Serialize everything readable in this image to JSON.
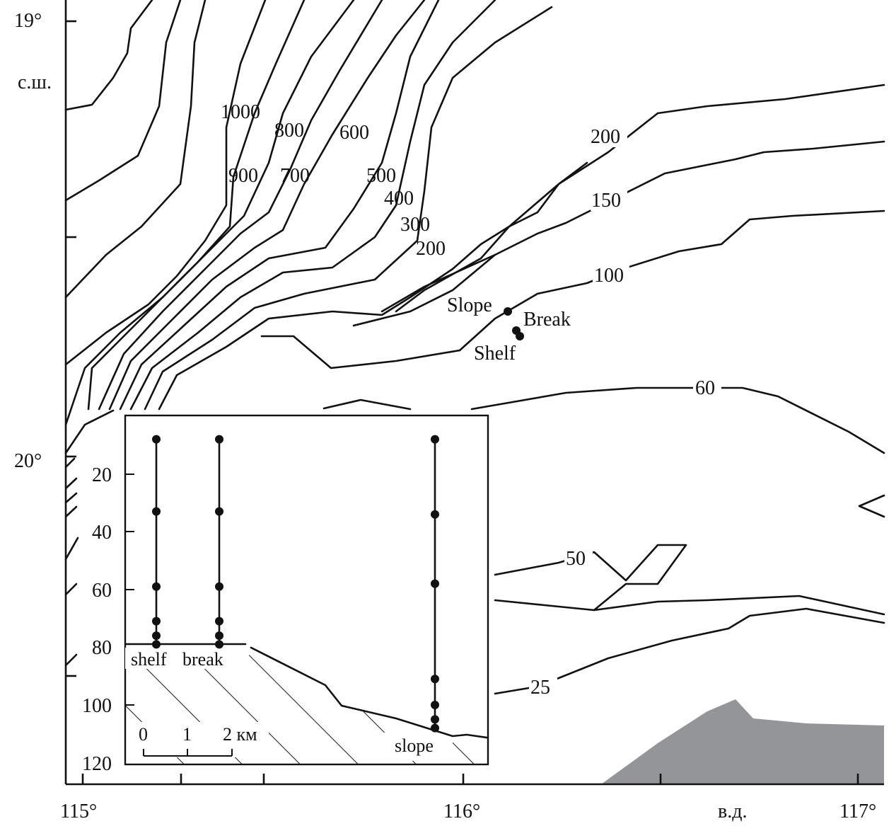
{
  "axes": {
    "lat_labels": [
      "19°",
      "с.ш.",
      "20°"
    ],
    "lon_labels": [
      "115°",
      "116°",
      "в.д.",
      "117°"
    ]
  },
  "contour_labels": [
    "1000",
    "900",
    "800",
    "700",
    "600",
    "500",
    "400",
    "300",
    "200",
    "200",
    "150",
    "100",
    "60",
    "50",
    "25"
  ],
  "stations": [
    "Slope",
    "Break",
    "Shelf"
  ],
  "colors": {
    "land": "#939598",
    "lines": "#111111"
  },
  "inset": {
    "depth_ticks": [
      "20",
      "40",
      "60",
      "80",
      "100",
      "120"
    ],
    "labels": [
      "shelf",
      "break",
      "slope"
    ],
    "scale_ticks": [
      "0",
      "1",
      "2 км"
    ],
    "profiles": [
      {
        "name": "shelf",
        "sample_depths_m": [
          8,
          33,
          59,
          71,
          76,
          79
        ]
      },
      {
        "name": "break",
        "sample_depths_m": [
          8,
          33,
          59,
          71,
          76,
          79
        ]
      },
      {
        "name": "slope",
        "sample_depths_m": [
          8,
          34,
          58,
          91,
          100,
          105,
          108
        ]
      }
    ]
  }
}
